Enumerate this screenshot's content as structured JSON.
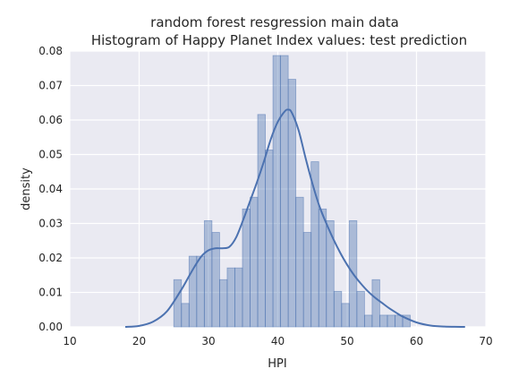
{
  "chart_data": {
    "type": "histogram",
    "title": "random forest resgression main data",
    "subtitle": "Histogram of Happy Planet Index values: test prediction",
    "xlabel": "HPI",
    "ylabel": "density",
    "xlim": [
      10,
      70
    ],
    "ylim": [
      0,
      0.08
    ],
    "x_ticks": [
      "10",
      "20",
      "30",
      "40",
      "50",
      "60",
      "70"
    ],
    "y_ticks": [
      "0.00",
      "0.01",
      "0.02",
      "0.03",
      "0.04",
      "0.05",
      "0.06",
      "0.07",
      "0.08"
    ],
    "grid": true,
    "colors": {
      "background": "#eaeaf2",
      "bar_fill": "#4c72b0",
      "bar_opacity": 0.4,
      "kde_line": "#4c72b0",
      "grid": "#ffffff"
    },
    "bins": [
      {
        "x0": 25.0,
        "x1": 26.1,
        "density": 0.0137
      },
      {
        "x0": 26.1,
        "x1": 27.2,
        "density": 0.0068
      },
      {
        "x0": 27.2,
        "x1": 28.3,
        "density": 0.0205
      },
      {
        "x0": 28.3,
        "x1": 29.4,
        "density": 0.0205
      },
      {
        "x0": 29.4,
        "x1": 30.5,
        "density": 0.0308
      },
      {
        "x0": 30.5,
        "x1": 31.6,
        "density": 0.0274
      },
      {
        "x0": 31.6,
        "x1": 32.7,
        "density": 0.0137
      },
      {
        "x0": 32.7,
        "x1": 33.8,
        "density": 0.0171
      },
      {
        "x0": 33.8,
        "x1": 34.9,
        "density": 0.0171
      },
      {
        "x0": 34.9,
        "x1": 36.0,
        "density": 0.0342
      },
      {
        "x0": 36.0,
        "x1": 37.1,
        "density": 0.0376
      },
      {
        "x0": 37.1,
        "x1": 38.2,
        "density": 0.0616
      },
      {
        "x0": 38.2,
        "x1": 39.3,
        "density": 0.0513
      },
      {
        "x0": 39.3,
        "x1": 40.4,
        "density": 0.0787
      },
      {
        "x0": 40.4,
        "x1": 41.5,
        "density": 0.0787
      },
      {
        "x0": 41.5,
        "x1": 42.6,
        "density": 0.0718
      },
      {
        "x0": 42.6,
        "x1": 43.7,
        "density": 0.0376
      },
      {
        "x0": 43.7,
        "x1": 44.8,
        "density": 0.0274
      },
      {
        "x0": 44.8,
        "x1": 45.9,
        "density": 0.0479
      },
      {
        "x0": 45.9,
        "x1": 47.0,
        "density": 0.0342
      },
      {
        "x0": 47.0,
        "x1": 48.1,
        "density": 0.0308
      },
      {
        "x0": 48.1,
        "x1": 49.2,
        "density": 0.0103
      },
      {
        "x0": 49.2,
        "x1": 50.3,
        "density": 0.0068
      },
      {
        "x0": 50.3,
        "x1": 51.4,
        "density": 0.0308
      },
      {
        "x0": 51.4,
        "x1": 52.5,
        "density": 0.0103
      },
      {
        "x0": 52.5,
        "x1": 53.6,
        "density": 0.0034
      },
      {
        "x0": 53.6,
        "x1": 54.7,
        "density": 0.0137
      },
      {
        "x0": 54.7,
        "x1": 55.8,
        "density": 0.0034
      },
      {
        "x0": 55.8,
        "x1": 56.9,
        "density": 0.0034
      },
      {
        "x0": 56.9,
        "x1": 58.0,
        "density": 0.0034
      },
      {
        "x0": 58.0,
        "x1": 59.1,
        "density": 0.0034
      }
    ],
    "kde": {
      "x": [
        18,
        20,
        22,
        24,
        26,
        27,
        28,
        29,
        30,
        31,
        32,
        33,
        34,
        35,
        36,
        37,
        38,
        39,
        40,
        41,
        41.5,
        42,
        43,
        44,
        45,
        46,
        47,
        48,
        49,
        50,
        51,
        52,
        53,
        54,
        55,
        56,
        57,
        58,
        60,
        62,
        64,
        67
      ],
      "y": [
        0.0,
        0.0003,
        0.0015,
        0.0045,
        0.0105,
        0.014,
        0.0175,
        0.0205,
        0.0222,
        0.0228,
        0.0228,
        0.0232,
        0.026,
        0.031,
        0.0365,
        0.042,
        0.048,
        0.0545,
        0.0595,
        0.0625,
        0.063,
        0.0622,
        0.057,
        0.049,
        0.0415,
        0.035,
        0.03,
        0.0255,
        0.0215,
        0.018,
        0.015,
        0.0125,
        0.0103,
        0.0085,
        0.007,
        0.0055,
        0.0042,
        0.003,
        0.0013,
        0.0004,
        0.0001,
        0.0
      ]
    }
  }
}
